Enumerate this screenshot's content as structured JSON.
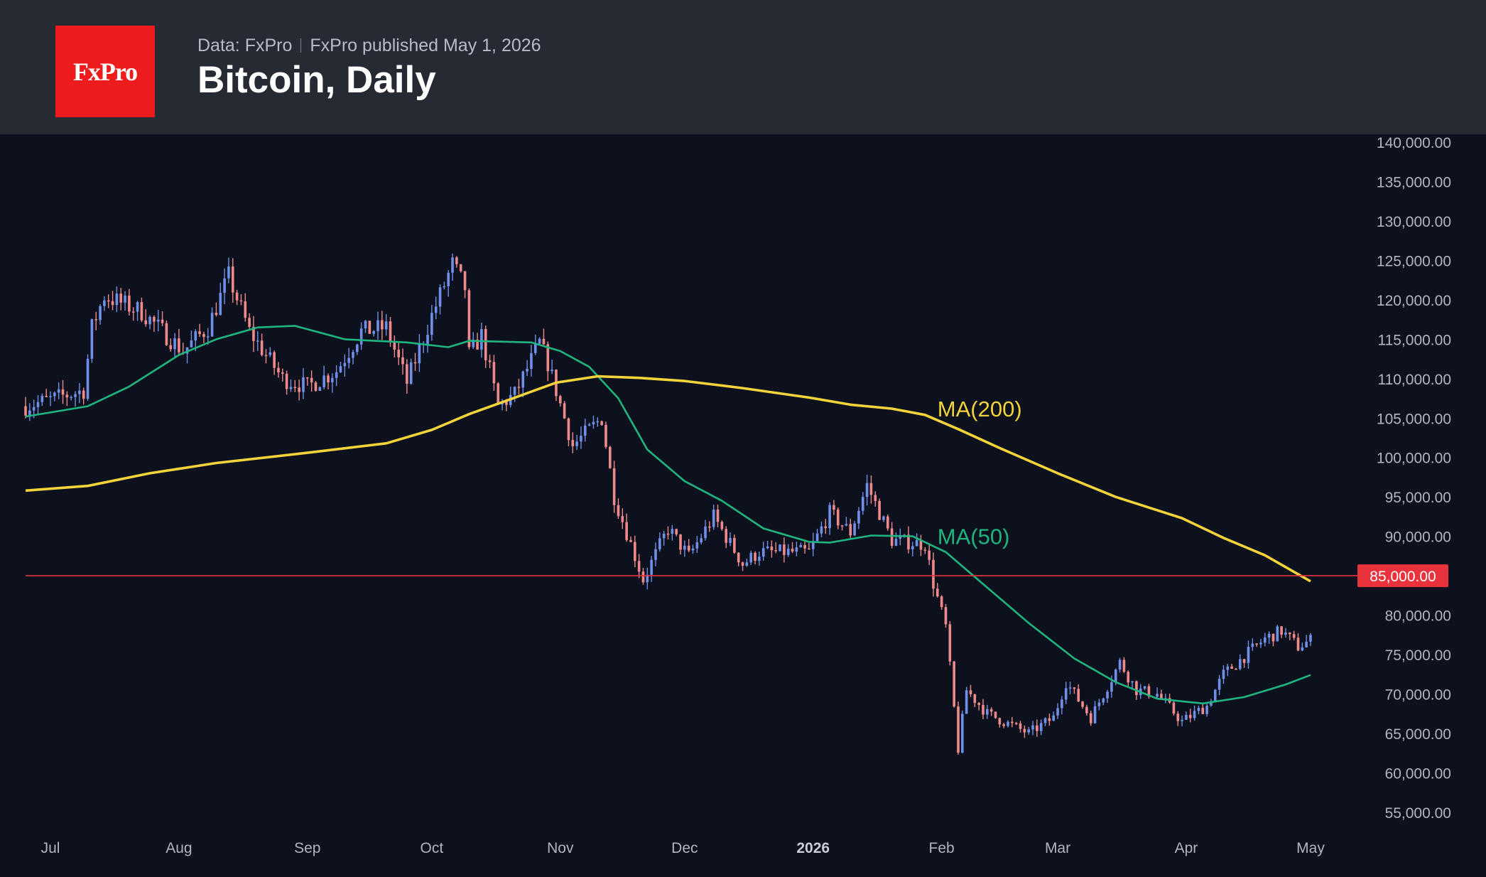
{
  "header": {
    "logo_text": "FxPro",
    "data_source": "Data: FxPro",
    "published": "FxPro published May 1, 2026",
    "title": "Bitcoin, Daily"
  },
  "colors": {
    "background": "#0c111d",
    "header": "#262a33",
    "logo": "#ee1c1c",
    "candle_up": "#6f8fe8",
    "candle_down": "#f08a8a",
    "ma50": "#1fb57f",
    "ma200": "#f2d33a",
    "level": "#e8323c"
  },
  "chart_data": {
    "type": "candlestick",
    "x_range": [
      "2025-06-25",
      "2026-05-01"
    ],
    "ylim": [
      53000,
      141000
    ],
    "y_ticks": [
      {
        "v": 140000,
        "label": "140,000.00"
      },
      {
        "v": 135000,
        "label": "135,000.00"
      },
      {
        "v": 130000,
        "label": "130,000.00"
      },
      {
        "v": 125000,
        "label": "125,000.00"
      },
      {
        "v": 120000,
        "label": "120,000.00"
      },
      {
        "v": 115000,
        "label": "115,000.00"
      },
      {
        "v": 110000,
        "label": "110,000.00"
      },
      {
        "v": 105000,
        "label": "105,000.00"
      },
      {
        "v": 100000,
        "label": "100,000.00"
      },
      {
        "v": 95000,
        "label": "95,000.00"
      },
      {
        "v": 90000,
        "label": "90,000.00"
      },
      {
        "v": 80000,
        "label": "80,000.00"
      },
      {
        "v": 75000,
        "label": "75,000.00"
      },
      {
        "v": 70000,
        "label": "70,000.00"
      },
      {
        "v": 65000,
        "label": "65,000.00"
      },
      {
        "v": 60000,
        "label": "60,000.00"
      },
      {
        "v": 55000,
        "label": "55,000.00"
      }
    ],
    "x_ticks": [
      {
        "date": "2025-07-01",
        "label": "Jul",
        "bold": false
      },
      {
        "date": "2025-08-01",
        "label": "Aug",
        "bold": false
      },
      {
        "date": "2025-09-01",
        "label": "Sep",
        "bold": false
      },
      {
        "date": "2025-10-01",
        "label": "Oct",
        "bold": false
      },
      {
        "date": "2025-11-01",
        "label": "Nov",
        "bold": false
      },
      {
        "date": "2025-12-01",
        "label": "Dec",
        "bold": false
      },
      {
        "date": "2026-01-01",
        "label": "2026",
        "bold": true
      },
      {
        "date": "2026-02-01",
        "label": "Feb",
        "bold": false
      },
      {
        "date": "2026-03-01",
        "label": "Mar",
        "bold": false
      },
      {
        "date": "2026-04-01",
        "label": "Apr",
        "bold": false
      },
      {
        "date": "2026-05-01",
        "label": "May",
        "bold": false
      }
    ],
    "level": {
      "value": 85000,
      "label": "85,000.00"
    },
    "close_path": [
      [
        "2025-06-25",
        106500
      ],
      [
        "2025-07-09",
        108500
      ],
      [
        "2025-07-11",
        116500
      ],
      [
        "2025-07-14",
        120500
      ],
      [
        "2025-07-23",
        118500
      ],
      [
        "2025-08-02",
        113500
      ],
      [
        "2025-08-08",
        116500
      ],
      [
        "2025-08-13",
        123000
      ],
      [
        "2025-08-18",
        116000
      ],
      [
        "2025-08-26",
        110000
      ],
      [
        "2025-09-01",
        109000
      ],
      [
        "2025-09-08",
        111000
      ],
      [
        "2025-09-14",
        116000
      ],
      [
        "2025-09-20",
        116500
      ],
      [
        "2025-09-25",
        109500
      ],
      [
        "2025-10-01",
        118000
      ],
      [
        "2025-10-06",
        124500
      ],
      [
        "2025-10-09",
        121500
      ],
      [
        "2025-10-10",
        113000
      ],
      [
        "2025-10-13",
        115500
      ],
      [
        "2025-10-17",
        106500
      ],
      [
        "2025-10-21",
        108000
      ],
      [
        "2025-10-27",
        114500
      ],
      [
        "2025-10-29",
        112000
      ],
      [
        "2025-11-04",
        101500
      ],
      [
        "2025-11-11",
        105000
      ],
      [
        "2025-11-14",
        95000
      ],
      [
        "2025-11-21",
        84500
      ],
      [
        "2025-11-27",
        91000
      ],
      [
        "2025-12-02",
        87500
      ],
      [
        "2025-12-08",
        92500
      ],
      [
        "2025-12-15",
        86500
      ],
      [
        "2025-12-19",
        88000
      ],
      [
        "2025-12-31",
        88000
      ],
      [
        "2026-01-05",
        93000
      ],
      [
        "2026-01-10",
        90500
      ],
      [
        "2026-01-14",
        96500
      ],
      [
        "2026-01-20",
        89500
      ],
      [
        "2026-01-28",
        89000
      ],
      [
        "2026-01-30",
        84000
      ],
      [
        "2026-02-02",
        78500
      ],
      [
        "2026-02-05",
        63000
      ],
      [
        "2026-02-07",
        70500
      ],
      [
        "2026-02-12",
        67500
      ],
      [
        "2026-02-22",
        65000
      ],
      [
        "2026-02-28",
        67000
      ],
      [
        "2026-03-03",
        71500
      ],
      [
        "2026-03-09",
        67000
      ],
      [
        "2026-03-16",
        74000
      ],
      [
        "2026-03-20",
        70500
      ],
      [
        "2026-03-25",
        70000
      ],
      [
        "2026-03-31",
        66500
      ],
      [
        "2026-04-06",
        68500
      ],
      [
        "2026-04-10",
        72500
      ],
      [
        "2026-04-20",
        77000
      ],
      [
        "2026-04-24",
        78000
      ],
      [
        "2026-04-28",
        76000
      ],
      [
        "2026-05-01",
        76800
      ]
    ],
    "series": [
      {
        "name": "MA(50)",
        "color": "#1fb57f",
        "points": [
          [
            "2025-06-25",
            105200
          ],
          [
            "2025-07-10",
            106500
          ],
          [
            "2025-07-20",
            109000
          ],
          [
            "2025-08-01",
            113000
          ],
          [
            "2025-08-10",
            115000
          ],
          [
            "2025-08-20",
            116500
          ],
          [
            "2025-08-29",
            116700
          ],
          [
            "2025-09-10",
            115000
          ],
          [
            "2025-09-25",
            114600
          ],
          [
            "2025-10-05",
            114000
          ],
          [
            "2025-10-10",
            114800
          ],
          [
            "2025-10-25",
            114600
          ],
          [
            "2025-11-01",
            113500
          ],
          [
            "2025-11-08",
            111500
          ],
          [
            "2025-11-15",
            107500
          ],
          [
            "2025-11-22",
            101000
          ],
          [
            "2025-12-01",
            97000
          ],
          [
            "2025-12-10",
            94500
          ],
          [
            "2025-12-20",
            91000
          ],
          [
            "2025-12-31",
            89300
          ],
          [
            "2026-01-05",
            89200
          ],
          [
            "2026-01-15",
            90100
          ],
          [
            "2026-01-25",
            90000
          ],
          [
            "2026-02-02",
            88000
          ],
          [
            "2026-02-12",
            83500
          ],
          [
            "2026-02-22",
            79000
          ],
          [
            "2026-03-05",
            74500
          ],
          [
            "2026-03-15",
            71500
          ],
          [
            "2026-03-25",
            69400
          ],
          [
            "2026-04-05",
            68800
          ],
          [
            "2026-04-15",
            69600
          ],
          [
            "2026-04-25",
            71200
          ],
          [
            "2026-05-01",
            72400
          ]
        ]
      },
      {
        "name": "MA(200)",
        "color": "#f2d33a",
        "points": [
          [
            "2025-06-25",
            95800
          ],
          [
            "2025-07-10",
            96400
          ],
          [
            "2025-07-25",
            98000
          ],
          [
            "2025-08-10",
            99300
          ],
          [
            "2025-09-01",
            100600
          ],
          [
            "2025-09-20",
            101800
          ],
          [
            "2025-10-01",
            103500
          ],
          [
            "2025-10-10",
            105500
          ],
          [
            "2025-10-20",
            107400
          ],
          [
            "2025-10-31",
            109500
          ],
          [
            "2025-11-10",
            110300
          ],
          [
            "2025-11-20",
            110100
          ],
          [
            "2025-12-01",
            109700
          ],
          [
            "2025-12-15",
            108800
          ],
          [
            "2025-12-31",
            107600
          ],
          [
            "2026-01-10",
            106700
          ],
          [
            "2026-01-20",
            106200
          ],
          [
            "2026-01-28",
            105400
          ],
          [
            "2026-02-05",
            103600
          ],
          [
            "2026-02-15",
            101200
          ],
          [
            "2026-03-01",
            98000
          ],
          [
            "2026-03-15",
            95000
          ],
          [
            "2026-03-31",
            92300
          ],
          [
            "2026-04-10",
            89800
          ],
          [
            "2026-04-20",
            87600
          ],
          [
            "2026-05-01",
            84300
          ]
        ]
      }
    ],
    "annotations": [
      {
        "text": "MA(200)",
        "date": "2026-01-31",
        "value": 105200,
        "color": "#f2d33a"
      },
      {
        "text": "MA(50)",
        "date": "2026-01-31",
        "value": 89000,
        "color": "#1fb57f"
      }
    ]
  }
}
